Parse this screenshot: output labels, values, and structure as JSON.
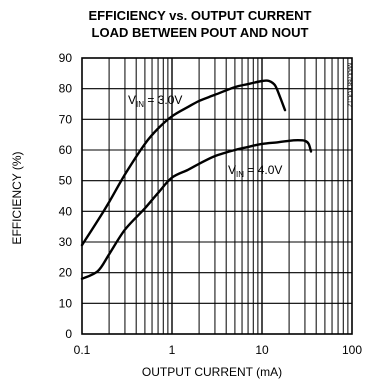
{
  "chart_data": {
    "type": "line",
    "title": "EFFICIENCY vs. OUTPUT CURRENT",
    "subtitle": "LOAD BETWEEN POUT AND NOUT",
    "xlabel": "OUTPUT CURRENT (mA)",
    "ylabel": "EFFICIENCY (%)",
    "xscale": "log",
    "xlim": [
      0.1,
      100
    ],
    "ylim": [
      0,
      90
    ],
    "xticks": [
      0.1,
      1,
      10,
      100
    ],
    "xtick_labels": [
      "0.1",
      "1",
      "10",
      "100"
    ],
    "yticks": [
      0,
      10,
      20,
      30,
      40,
      50,
      60,
      70,
      80,
      90
    ],
    "ytick_labels": [
      "0",
      "10",
      "20",
      "30",
      "40",
      "50",
      "60",
      "70",
      "80",
      "90"
    ],
    "grid": true,
    "part_number": "MAX768 TOC12",
    "series": [
      {
        "annotation": {
          "base": "V",
          "sub": "IN",
          "suffix": " = 3.0V"
        },
        "x": [
          0.1,
          0.15,
          0.2,
          0.3,
          0.5,
          0.7,
          1,
          1.5,
          2,
          3,
          5,
          7,
          10,
          12,
          14,
          16,
          18
        ],
        "y": [
          29,
          37,
          43,
          52,
          62,
          67,
          71,
          74,
          76,
          78,
          80.5,
          81.5,
          82.5,
          82.5,
          81,
          77,
          73
        ]
      },
      {
        "annotation": {
          "base": "V",
          "sub": "IN",
          "suffix": " = 4.0V"
        },
        "x": [
          0.1,
          0.15,
          0.2,
          0.3,
          0.5,
          0.7,
          1,
          1.5,
          2,
          3,
          5,
          7,
          10,
          15,
          20,
          25,
          30,
          33,
          35
        ],
        "y": [
          18,
          20.5,
          26,
          34,
          41,
          46,
          51,
          53.5,
          55.5,
          58,
          60,
          61,
          62,
          62.5,
          63,
          63.2,
          63,
          62,
          59.5
        ]
      }
    ]
  }
}
